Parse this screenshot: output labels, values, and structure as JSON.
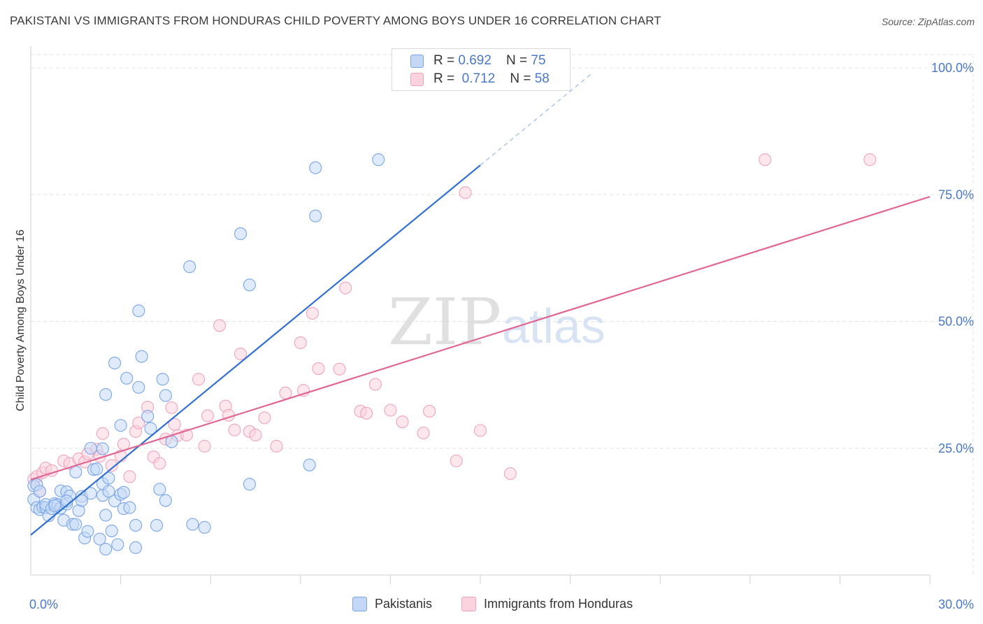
{
  "title": "PAKISTANI VS IMMIGRANTS FROM HONDURAS CHILD POVERTY AMONG BOYS UNDER 16 CORRELATION CHART",
  "source": "Source: ZipAtlas.com",
  "watermark": {
    "zip": "ZIP",
    "atlas": "atlas"
  },
  "legend": {
    "series1": {
      "r_label": "R = ",
      "r_value": "0.692",
      "n_label": "N = ",
      "n_value": "75"
    },
    "series2": {
      "r_label": "R = ",
      "r_value": "0.712",
      "n_label": "N = ",
      "n_value": "58"
    }
  },
  "chart_data": {
    "type": "scatter",
    "title": "PAKISTANI VS IMMIGRANTS FROM HONDURAS CHILD POVERTY AMONG BOYS UNDER 16 CORRELATION CHART",
    "xlabel": "",
    "ylabel": "Child Poverty Among Boys Under 16",
    "xlim": [
      0,
      30
    ],
    "ylim": [
      0,
      100
    ],
    "x_tick_labels": [
      {
        "value": 0,
        "label": "0.0%"
      },
      {
        "value": 30,
        "label": "30.0%"
      }
    ],
    "y_tick_labels": [
      {
        "value": 25,
        "label": "25.0%"
      },
      {
        "value": 50,
        "label": "50.0%"
      },
      {
        "value": 75,
        "label": "75.0%"
      },
      {
        "value": 100,
        "label": "100.0%"
      }
    ],
    "series": [
      {
        "name": "Pakistanis",
        "color": "#7aa6e6",
        "fill": "#c4d8f5",
        "line_color": "#2f6fd0",
        "r": 0.692,
        "n": 75,
        "trend": {
          "x0": 0,
          "y0": 7.9,
          "x1": 15,
          "y1": 80.8,
          "dash_x1": 18.7,
          "dash_y1": 98.8
        },
        "points": [
          [
            0.1,
            17.6
          ],
          [
            0.1,
            14.9
          ],
          [
            0.2,
            13.3
          ],
          [
            0.2,
            17.8
          ],
          [
            0.3,
            16.5
          ],
          [
            0.3,
            12.9
          ],
          [
            0.4,
            13.4
          ],
          [
            0.5,
            13.3
          ],
          [
            0.5,
            13.9
          ],
          [
            0.6,
            11.7
          ],
          [
            0.7,
            13.1
          ],
          [
            0.8,
            14.1
          ],
          [
            0.9,
            13.9
          ],
          [
            1.0,
            13.2
          ],
          [
            1.0,
            16.6
          ],
          [
            1.1,
            10.8
          ],
          [
            1.2,
            14.0
          ],
          [
            1.2,
            16.4
          ],
          [
            1.3,
            15.6
          ],
          [
            1.4,
            10.0
          ],
          [
            1.5,
            10.0
          ],
          [
            1.5,
            20.3
          ],
          [
            1.6,
            12.7
          ],
          [
            1.7,
            15.5
          ],
          [
            1.7,
            14.7
          ],
          [
            1.8,
            7.3
          ],
          [
            1.9,
            8.6
          ],
          [
            2.0,
            25.0
          ],
          [
            2.0,
            16.1
          ],
          [
            2.1,
            20.8
          ],
          [
            2.2,
            20.9
          ],
          [
            2.3,
            7.1
          ],
          [
            2.4,
            15.7
          ],
          [
            2.4,
            18.0
          ],
          [
            2.5,
            5.1
          ],
          [
            2.5,
            11.8
          ],
          [
            2.6,
            16.5
          ],
          [
            2.6,
            19.1
          ],
          [
            2.7,
            8.7
          ],
          [
            2.8,
            14.6
          ],
          [
            2.9,
            6.0
          ],
          [
            3.0,
            15.9
          ],
          [
            3.1,
            16.3
          ],
          [
            3.1,
            13.1
          ],
          [
            3.2,
            38.8
          ],
          [
            3.3,
            13.3
          ],
          [
            3.5,
            5.4
          ],
          [
            3.5,
            9.8
          ],
          [
            2.5,
            35.6
          ],
          [
            2.8,
            41.8
          ],
          [
            3.0,
            29.5
          ],
          [
            3.6,
            37.0
          ],
          [
            3.7,
            43.1
          ],
          [
            4.0,
            28.9
          ],
          [
            4.2,
            9.8
          ],
          [
            4.3,
            16.9
          ],
          [
            4.5,
            14.7
          ],
          [
            4.4,
            38.6
          ],
          [
            4.5,
            35.4
          ],
          [
            4.7,
            26.3
          ],
          [
            5.3,
            60.8
          ],
          [
            5.4,
            10.0
          ],
          [
            5.8,
            9.4
          ],
          [
            7.0,
            67.3
          ],
          [
            7.3,
            57.2
          ],
          [
            7.3,
            17.9
          ],
          [
            9.3,
            21.7
          ],
          [
            9.5,
            80.3
          ],
          [
            9.5,
            70.8
          ],
          [
            11.6,
            81.9
          ],
          [
            3.6,
            52.1
          ],
          [
            3.9,
            31.3
          ],
          [
            2.4,
            24.9
          ],
          [
            1.2,
            14.6
          ],
          [
            0.8,
            13.7
          ]
        ]
      },
      {
        "name": "Immigrants from Honduras",
        "color": "#f0a3bd",
        "fill": "#fad3df",
        "line_color": "#e06793",
        "r": 0.712,
        "n": 58,
        "trend": {
          "x0": 0,
          "y0": 18.8,
          "x1": 30,
          "y1": 74.6
        },
        "points": [
          [
            0.1,
            18.9
          ],
          [
            0.2,
            19.4
          ],
          [
            0.3,
            16.5
          ],
          [
            0.4,
            20.2
          ],
          [
            0.5,
            21.1
          ],
          [
            0.7,
            20.6
          ],
          [
            1.1,
            22.5
          ],
          [
            1.3,
            22.0
          ],
          [
            1.6,
            22.9
          ],
          [
            1.8,
            22.3
          ],
          [
            1.9,
            23.9
          ],
          [
            2.2,
            24.8
          ],
          [
            2.3,
            23.4
          ],
          [
            2.4,
            27.9
          ],
          [
            2.7,
            21.6
          ],
          [
            3.0,
            23.5
          ],
          [
            3.1,
            25.8
          ],
          [
            3.3,
            19.4
          ],
          [
            3.5,
            28.3
          ],
          [
            3.6,
            30.0
          ],
          [
            3.9,
            33.1
          ],
          [
            4.1,
            23.3
          ],
          [
            4.3,
            22.0
          ],
          [
            4.5,
            26.8
          ],
          [
            4.7,
            33.0
          ],
          [
            4.8,
            29.7
          ],
          [
            4.9,
            27.5
          ],
          [
            5.2,
            27.6
          ],
          [
            5.6,
            38.6
          ],
          [
            5.8,
            25.4
          ],
          [
            5.9,
            31.4
          ],
          [
            6.3,
            49.2
          ],
          [
            6.5,
            33.3
          ],
          [
            6.6,
            31.5
          ],
          [
            6.8,
            28.6
          ],
          [
            7.0,
            43.6
          ],
          [
            7.3,
            28.3
          ],
          [
            7.5,
            27.6
          ],
          [
            7.8,
            31.0
          ],
          [
            8.2,
            25.4
          ],
          [
            8.5,
            35.9
          ],
          [
            9.0,
            45.8
          ],
          [
            9.1,
            36.4
          ],
          [
            9.4,
            51.6
          ],
          [
            9.6,
            40.7
          ],
          [
            10.3,
            40.6
          ],
          [
            10.5,
            56.6
          ],
          [
            11.0,
            32.3
          ],
          [
            11.2,
            31.9
          ],
          [
            11.5,
            37.6
          ],
          [
            12.0,
            32.5
          ],
          [
            12.4,
            30.2
          ],
          [
            13.1,
            28.0
          ],
          [
            13.3,
            32.3
          ],
          [
            14.2,
            22.5
          ],
          [
            14.5,
            75.4
          ],
          [
            15.0,
            28.5
          ],
          [
            16.0,
            20.0
          ]
        ]
      }
    ],
    "extra_points_series2": [
      [
        24.5,
        81.9
      ],
      [
        28.0,
        81.9
      ]
    ],
    "watermark": "ZIPatlas"
  }
}
